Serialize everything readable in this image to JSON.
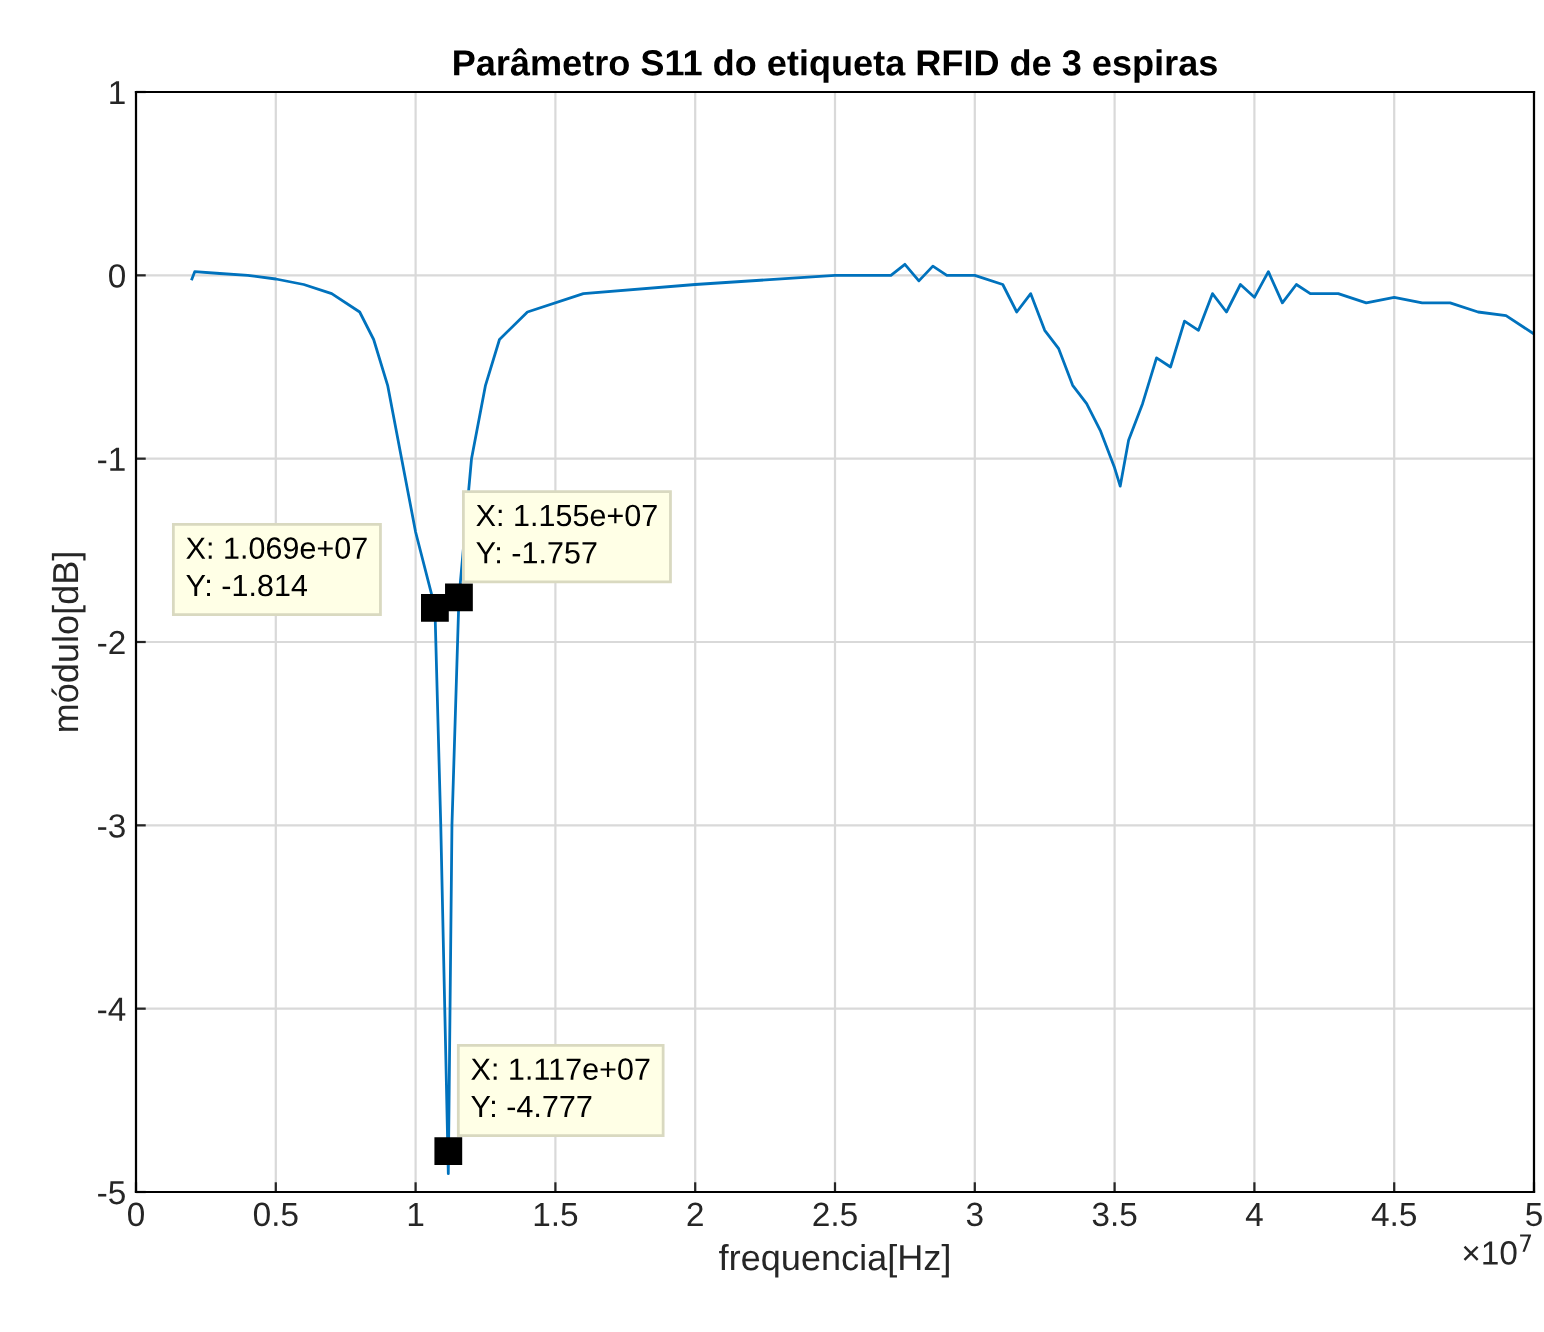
{
  "chart_data": {
    "type": "line",
    "title": "Parâmetro S11 do etiqueta RFID de 3 espiras",
    "xlabel": "frequencia[Hz]",
    "ylabel": "módulo[dB]",
    "x": [
      0.2,
      0.21,
      0.3,
      0.4,
      0.5,
      0.6,
      0.7,
      0.8,
      0.85,
      0.9,
      0.95,
      1.0,
      1.069,
      1.09,
      1.11,
      1.117,
      1.13,
      1.155,
      1.2,
      1.25,
      1.3,
      1.4,
      1.6,
      2.0,
      2.5,
      2.7,
      2.75,
      2.8,
      2.85,
      2.9,
      3.0,
      3.1,
      3.15,
      3.2,
      3.25,
      3.3,
      3.35,
      3.4,
      3.45,
      3.5,
      3.52,
      3.55,
      3.6,
      3.65,
      3.7,
      3.75,
      3.8,
      3.85,
      3.9,
      3.95,
      4.0,
      4.05,
      4.1,
      4.15,
      4.2,
      4.3,
      4.4,
      4.5,
      4.6,
      4.7,
      4.8,
      4.9,
      5.0
    ],
    "series": [
      {
        "color": "#0072bd",
        "values": [
          -0.02,
          0.02,
          0.01,
          0.0,
          -0.02,
          -0.05,
          -0.1,
          -0.2,
          -0.35,
          -0.6,
          -1.0,
          -1.4,
          -1.81,
          -3.0,
          -4.4,
          -4.9,
          -3.0,
          -1.76,
          -1.0,
          -0.6,
          -0.35,
          -0.2,
          -0.1,
          -0.05,
          0.0,
          0.0,
          0.06,
          -0.03,
          0.05,
          0.0,
          0.0,
          -0.05,
          -0.2,
          -0.1,
          -0.3,
          -0.4,
          -0.6,
          -0.7,
          -0.85,
          -1.05,
          -1.15,
          -0.9,
          -0.7,
          -0.45,
          -0.5,
          -0.25,
          -0.3,
          -0.1,
          -0.2,
          -0.05,
          -0.12,
          0.02,
          -0.15,
          -0.05,
          -0.1,
          -0.1,
          -0.15,
          -0.12,
          -0.15,
          -0.15,
          -0.2,
          -0.22,
          -0.32
        ]
      }
    ],
    "xlim": [
      0,
      5
    ],
    "ylim": [
      -5,
      1
    ],
    "xticks": [
      0,
      0.5,
      1,
      1.5,
      2,
      2.5,
      3,
      3.5,
      4,
      4.5,
      5
    ],
    "yticks": [
      -5,
      -4,
      -3,
      -2,
      -1,
      0,
      1
    ],
    "grid": true,
    "annotations": [
      {
        "text": "X: 1.069e+07\nY: -1.814",
        "x": 1.069,
        "y": -1.814
      },
      {
        "text": "X: 1.155e+07\nY: -1.757",
        "x": 1.155,
        "y": -1.757
      },
      {
        "text": "X: 1.117e+07\nY: -4.777",
        "x": 1.117,
        "y": -4.777
      },
      "×10$^{7}$"
    ]
  }
}
